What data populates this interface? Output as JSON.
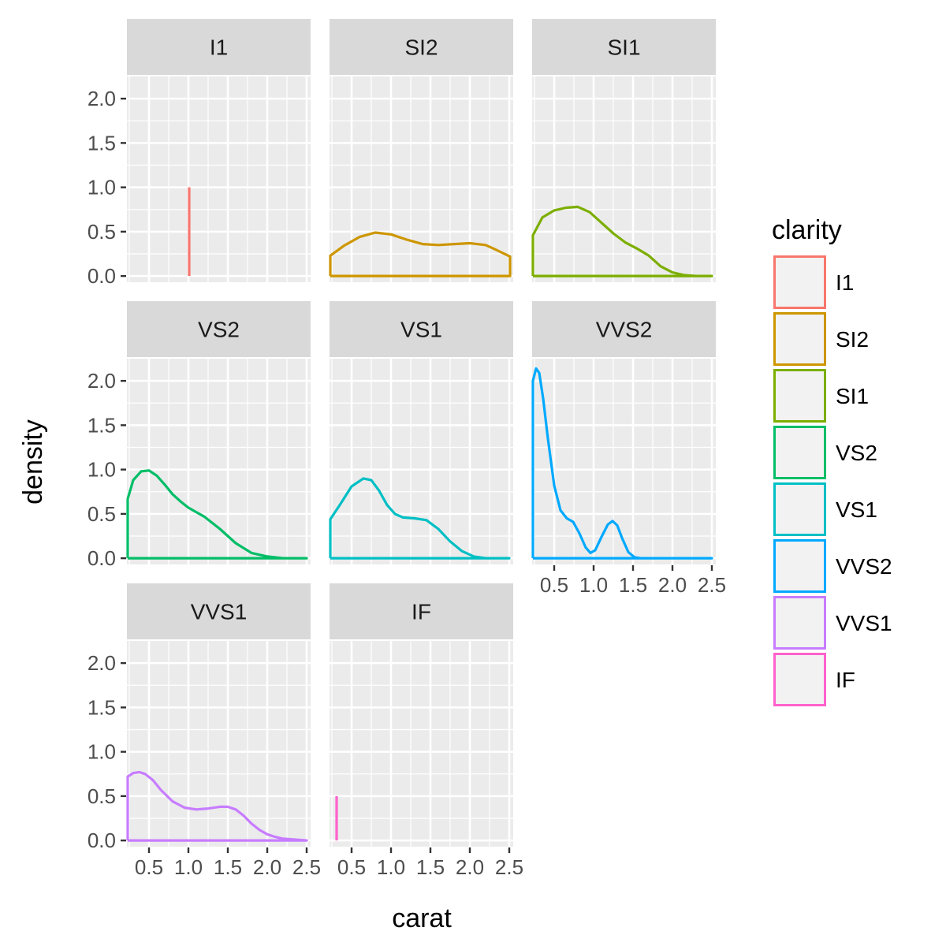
{
  "chart_data": {
    "type": "line",
    "subtype": "faceted-density",
    "xlabel": "carat",
    "ylabel": "density",
    "xlim": [
      0.22,
      2.55
    ],
    "ylim": [
      -0.07,
      2.25
    ],
    "x_ticks": [
      0.5,
      1.0,
      1.5,
      2.0,
      2.5
    ],
    "x_tick_labels": [
      "0.5",
      "1.0",
      "1.5",
      "2.0",
      "2.5"
    ],
    "y_ticks": [
      0,
      0.5,
      1.0,
      1.5,
      2.0
    ],
    "y_tick_labels": [
      "0.0",
      "0.5",
      "1.0",
      "1.5",
      "2.0"
    ],
    "grid": true,
    "legend": {
      "title": "clarity",
      "position": "right"
    },
    "series": [
      {
        "name": "I1",
        "color": "#F8766D",
        "x": [
          1.01,
          1.01
        ],
        "y": [
          0,
          1.0
        ]
      },
      {
        "name": "SI2",
        "color": "#CD9600",
        "x": [
          0.23,
          0.23,
          0.4,
          0.6,
          0.8,
          1.0,
          1.2,
          1.4,
          1.6,
          1.8,
          2.0,
          2.2,
          2.3,
          2.51,
          2.51,
          0.23
        ],
        "y": [
          0,
          0.23,
          0.34,
          0.44,
          0.49,
          0.47,
          0.41,
          0.36,
          0.35,
          0.36,
          0.37,
          0.35,
          0.31,
          0.22,
          0,
          0
        ]
      },
      {
        "name": "SI1",
        "color": "#7CAE00",
        "x": [
          0.23,
          0.23,
          0.35,
          0.5,
          0.65,
          0.8,
          0.95,
          1.1,
          1.25,
          1.4,
          1.55,
          1.7,
          1.85,
          2.0,
          2.15,
          2.3,
          2.5,
          2.5,
          0.23
        ],
        "y": [
          0,
          0.46,
          0.66,
          0.74,
          0.77,
          0.78,
          0.72,
          0.6,
          0.48,
          0.38,
          0.31,
          0.23,
          0.11,
          0.04,
          0.01,
          0.0,
          0.0,
          0,
          0
        ]
      },
      {
        "name": "VS2",
        "color": "#00BE67",
        "x": [
          0.23,
          0.23,
          0.3,
          0.4,
          0.5,
          0.6,
          0.7,
          0.8,
          0.9,
          1.0,
          1.2,
          1.4,
          1.6,
          1.8,
          2.0,
          2.2,
          2.5,
          2.5,
          0.23
        ],
        "y": [
          0,
          0.67,
          0.88,
          0.98,
          0.99,
          0.93,
          0.83,
          0.72,
          0.64,
          0.57,
          0.47,
          0.33,
          0.17,
          0.06,
          0.02,
          0.0,
          0.0,
          0,
          0
        ]
      },
      {
        "name": "VS1",
        "color": "#00BFC4",
        "x": [
          0.23,
          0.23,
          0.35,
          0.5,
          0.65,
          0.75,
          0.85,
          0.95,
          1.05,
          1.15,
          1.3,
          1.45,
          1.6,
          1.75,
          1.9,
          2.05,
          2.2,
          2.4,
          2.5,
          2.5,
          0.23
        ],
        "y": [
          0,
          0.44,
          0.6,
          0.81,
          0.9,
          0.88,
          0.76,
          0.6,
          0.5,
          0.46,
          0.45,
          0.43,
          0.33,
          0.19,
          0.08,
          0.02,
          0.0,
          0.0,
          0.0,
          0,
          0
        ]
      },
      {
        "name": "VVS2",
        "color": "#00A9FF",
        "x": [
          0.23,
          0.23,
          0.27,
          0.31,
          0.36,
          0.42,
          0.5,
          0.58,
          0.66,
          0.74,
          0.82,
          0.9,
          0.96,
          1.02,
          1.1,
          1.18,
          1.24,
          1.3,
          1.36,
          1.44,
          1.52,
          1.6,
          1.8,
          2.0,
          2.5,
          2.5,
          0.23
        ],
        "y": [
          0,
          2.0,
          2.14,
          2.09,
          1.8,
          1.35,
          0.82,
          0.54,
          0.45,
          0.41,
          0.28,
          0.12,
          0.06,
          0.09,
          0.24,
          0.38,
          0.42,
          0.37,
          0.23,
          0.07,
          0.01,
          0.0,
          0.0,
          0.0,
          0.0,
          0,
          0
        ]
      },
      {
        "name": "VVS1",
        "color": "#C77CFF",
        "x": [
          0.23,
          0.23,
          0.3,
          0.38,
          0.45,
          0.55,
          0.65,
          0.8,
          0.95,
          1.1,
          1.25,
          1.4,
          1.5,
          1.6,
          1.7,
          1.8,
          1.9,
          2.0,
          2.1,
          2.2,
          2.35,
          2.5,
          2.5,
          0.23
        ],
        "y": [
          0,
          0.72,
          0.76,
          0.77,
          0.75,
          0.68,
          0.57,
          0.44,
          0.37,
          0.35,
          0.36,
          0.38,
          0.38,
          0.35,
          0.28,
          0.19,
          0.12,
          0.07,
          0.04,
          0.02,
          0.01,
          0.0,
          0,
          0
        ]
      },
      {
        "name": "IF",
        "color": "#FF61CC",
        "x": [
          0.31,
          0.31
        ],
        "y": [
          0,
          0.5
        ]
      }
    ]
  }
}
